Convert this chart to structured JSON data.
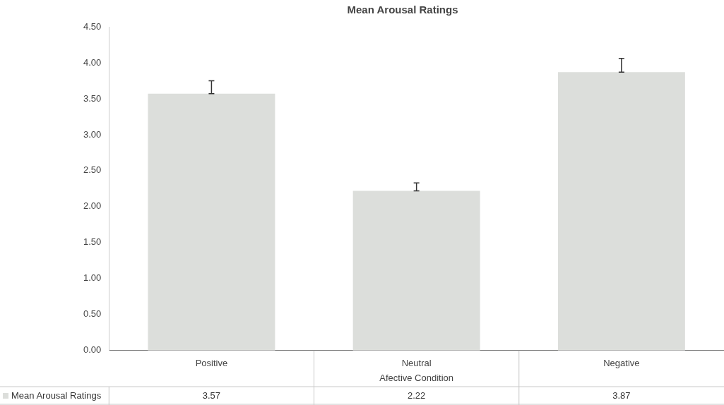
{
  "chart_data": {
    "type": "bar",
    "title": "Mean Arousal Ratings",
    "xlabel": "Afective Condition",
    "categories": [
      "Positive",
      "Neutral",
      "Negative"
    ],
    "series": [
      {
        "name": "Mean Arousal Ratings",
        "color": "#dcdedb",
        "values": [
          3.57,
          2.22,
          3.87
        ],
        "errors": [
          [
            3.57,
            3.75
          ],
          [
            2.22,
            2.33
          ],
          [
            3.87,
            4.06
          ]
        ]
      }
    ],
    "ylim": [
      0,
      4.5
    ],
    "yticks": [
      {
        "value": 0,
        "label": "0.00"
      },
      {
        "value": 0.5,
        "label": "0.50"
      },
      {
        "value": 1,
        "label": "1.00"
      },
      {
        "value": 1.5,
        "label": "1.50"
      },
      {
        "value": 2,
        "label": "2.00"
      },
      {
        "value": 2.5,
        "label": "2.50"
      },
      {
        "value": 3,
        "label": "3.00"
      },
      {
        "value": 3.5,
        "label": "3.50"
      },
      {
        "value": 4,
        "label": "4.00"
      },
      {
        "value": 4.5,
        "label": "4.50"
      }
    ],
    "data_labels": true,
    "legend": "bottom"
  }
}
